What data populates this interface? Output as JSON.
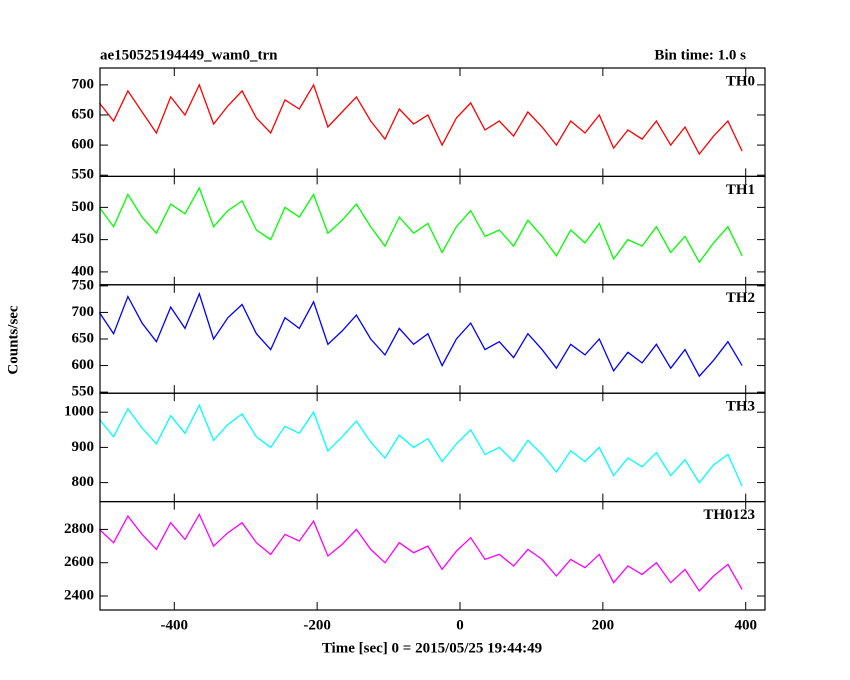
{
  "chart_data": {
    "type": "line",
    "title": "ae150525194449_wam0_trn",
    "subtitle": "Bin time: 1.0 s",
    "y_label": "Counts/sec",
    "x_label": "Time [sec] 0 = 2015/05/25 19:44:49",
    "xlim": [
      -504,
      427
    ],
    "xticks": [
      -400,
      -200,
      0,
      200,
      400
    ],
    "x": [
      -505,
      -485,
      -465,
      -445,
      -425,
      -405,
      -385,
      -365,
      -345,
      -325,
      -305,
      -285,
      -265,
      -245,
      -225,
      -205,
      -185,
      -165,
      -145,
      -125,
      -105,
      -85,
      -65,
      -45,
      -25,
      -5,
      15,
      35,
      55,
      75,
      95,
      115,
      135,
      155,
      175,
      195,
      215,
      235,
      255,
      275,
      295,
      315,
      335,
      355,
      375,
      395
    ],
    "series": [
      {
        "name": "TH0",
        "color": "#ff0000",
        "ylim": [
          548,
          728
        ],
        "yticks": [
          550,
          600,
          650,
          700
        ],
        "values": [
          670,
          640,
          690,
          655,
          620,
          680,
          650,
          700,
          635,
          665,
          690,
          645,
          620,
          675,
          660,
          700,
          630,
          655,
          680,
          640,
          610,
          660,
          635,
          650,
          600,
          645,
          670,
          625,
          640,
          615,
          655,
          630,
          600,
          640,
          620,
          650,
          595,
          625,
          610,
          640,
          600,
          630,
          585,
          615,
          640,
          590
        ]
      },
      {
        "name": "TH1",
        "color": "#00ff00",
        "ylim": [
          380,
          548
        ],
        "yticks": [
          400,
          450,
          500
        ],
        "values": [
          500,
          470,
          520,
          485,
          460,
          505,
          490,
          530,
          470,
          495,
          510,
          465,
          450,
          500,
          485,
          520,
          460,
          480,
          505,
          470,
          440,
          485,
          460,
          475,
          430,
          470,
          495,
          455,
          465,
          440,
          480,
          455,
          425,
          465,
          445,
          475,
          420,
          450,
          440,
          470,
          430,
          455,
          415,
          445,
          470,
          425
        ]
      },
      {
        "name": "TH2",
        "color": "#0000ff",
        "ylim": [
          548,
          752
        ],
        "yticks": [
          550,
          600,
          650,
          700,
          750
        ],
        "values": [
          700,
          660,
          730,
          680,
          645,
          710,
          670,
          735,
          650,
          690,
          715,
          660,
          630,
          690,
          670,
          720,
          640,
          665,
          695,
          650,
          620,
          670,
          640,
          660,
          600,
          650,
          680,
          630,
          645,
          615,
          660,
          630,
          595,
          640,
          620,
          650,
          590,
          625,
          605,
          640,
          595,
          630,
          580,
          610,
          645,
          600
        ]
      },
      {
        "name": "TH3",
        "color": "#00ffff",
        "ylim": [
          746,
          1054
        ],
        "yticks": [
          800,
          900,
          1000
        ],
        "values": [
          980,
          930,
          1010,
          955,
          910,
          990,
          940,
          1020,
          920,
          965,
          995,
          930,
          900,
          960,
          940,
          1000,
          890,
          930,
          975,
          915,
          870,
          935,
          900,
          925,
          860,
          910,
          950,
          880,
          900,
          860,
          920,
          880,
          830,
          890,
          860,
          900,
          820,
          870,
          845,
          885,
          820,
          865,
          800,
          850,
          880,
          790
        ]
      },
      {
        "name": "TH0123",
        "color": "#ff00ff",
        "ylim": [
          2316,
          2967
        ],
        "yticks": [
          2400,
          2600,
          2800
        ],
        "values": [
          2800,
          2720,
          2880,
          2770,
          2680,
          2840,
          2740,
          2890,
          2700,
          2780,
          2840,
          2720,
          2650,
          2770,
          2730,
          2850,
          2640,
          2710,
          2800,
          2680,
          2600,
          2720,
          2660,
          2700,
          2560,
          2670,
          2750,
          2620,
          2650,
          2580,
          2680,
          2620,
          2520,
          2620,
          2570,
          2650,
          2480,
          2580,
          2530,
          2600,
          2480,
          2560,
          2430,
          2520,
          2590,
          2440
        ]
      }
    ]
  }
}
